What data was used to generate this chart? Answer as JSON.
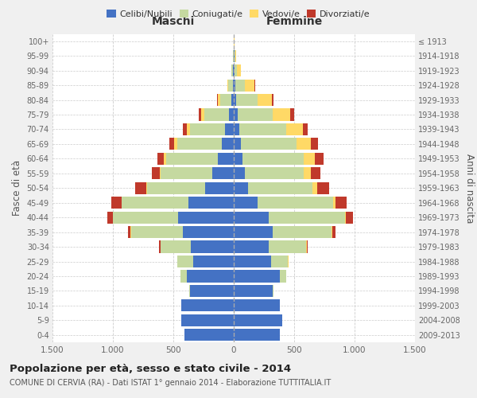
{
  "age_groups": [
    "0-4",
    "5-9",
    "10-14",
    "15-19",
    "20-24",
    "25-29",
    "30-34",
    "35-39",
    "40-44",
    "45-49",
    "50-54",
    "55-59",
    "60-64",
    "65-69",
    "70-74",
    "75-79",
    "80-84",
    "85-89",
    "90-94",
    "95-99",
    "100+"
  ],
  "birth_years": [
    "2009-2013",
    "2004-2008",
    "1999-2003",
    "1994-1998",
    "1989-1993",
    "1984-1988",
    "1979-1983",
    "1974-1978",
    "1969-1973",
    "1964-1968",
    "1959-1963",
    "1954-1958",
    "1949-1953",
    "1944-1948",
    "1939-1943",
    "1934-1938",
    "1929-1933",
    "1924-1928",
    "1919-1923",
    "1914-1918",
    "≤ 1913"
  ],
  "maschi": {
    "celibi": [
      410,
      435,
      435,
      360,
      390,
      335,
      355,
      420,
      460,
      375,
      235,
      175,
      130,
      100,
      70,
      42,
      20,
      8,
      5,
      3,
      2
    ],
    "coniugati": [
      0,
      1,
      2,
      10,
      50,
      130,
      250,
      430,
      540,
      550,
      480,
      430,
      430,
      370,
      290,
      200,
      90,
      35,
      12,
      3,
      1
    ],
    "vedovi": [
      0,
      0,
      0,
      0,
      0,
      0,
      1,
      2,
      3,
      5,
      8,
      10,
      20,
      25,
      30,
      30,
      20,
      8,
      2,
      1,
      0
    ],
    "divorziati": [
      0,
      0,
      0,
      0,
      2,
      5,
      10,
      20,
      40,
      80,
      90,
      65,
      50,
      35,
      30,
      20,
      5,
      2,
      1,
      0,
      0
    ]
  },
  "femmine": {
    "nubili": [
      380,
      400,
      380,
      320,
      380,
      310,
      290,
      320,
      290,
      200,
      120,
      90,
      70,
      60,
      45,
      30,
      18,
      10,
      8,
      5,
      2
    ],
    "coniugate": [
      0,
      0,
      2,
      10,
      55,
      140,
      310,
      490,
      630,
      620,
      530,
      490,
      510,
      460,
      390,
      290,
      180,
      80,
      20,
      5,
      1
    ],
    "vedove": [
      0,
      0,
      0,
      0,
      0,
      1,
      2,
      5,
      10,
      20,
      40,
      55,
      90,
      120,
      140,
      150,
      120,
      80,
      30,
      10,
      2
    ],
    "divorziate": [
      0,
      0,
      0,
      0,
      2,
      5,
      10,
      25,
      60,
      95,
      100,
      80,
      75,
      60,
      40,
      30,
      10,
      5,
      2,
      0,
      0
    ]
  },
  "colors": {
    "celibi": "#4472c4",
    "coniugati": "#c5d9a0",
    "vedovi": "#ffd966",
    "divorziati": "#c0392b"
  },
  "xlim": 1500,
  "title": "Popolazione per età, sesso e stato civile - 2014",
  "subtitle": "COMUNE DI CERVIA (RA) - Dati ISTAT 1° gennaio 2014 - Elaborazione TUTTITALIA.IT",
  "xlabel_left": "Maschi",
  "xlabel_right": "Femmine",
  "ylabel_left": "Fasce di età",
  "ylabel_right": "Anni di nascita",
  "bg_color": "#f0f0f0",
  "plot_bg": "#ffffff",
  "grid_color": "#cccccc",
  "xticks": [
    -1500,
    -1000,
    -500,
    0,
    500,
    1000,
    1500
  ],
  "xticklabels": [
    "1.500",
    "1.000",
    "500",
    "0",
    "500",
    "1.000",
    "1.500"
  ]
}
